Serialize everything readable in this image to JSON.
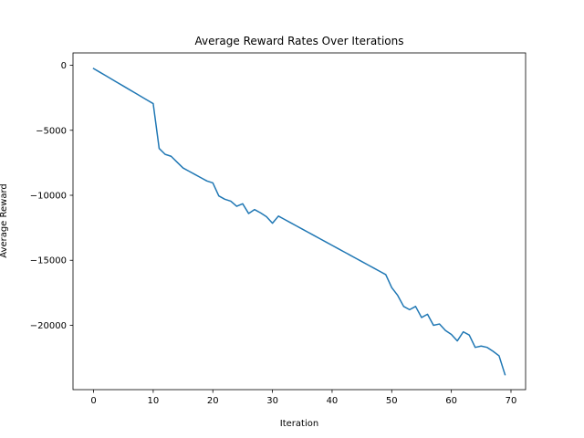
{
  "chart_data": {
    "type": "line",
    "title": "Average Reward Rates Over Iterations",
    "xlabel": "Iteration",
    "ylabel": "Average Reward",
    "xlim": [
      -3.45,
      72.45
    ],
    "ylim": [
      -24950,
      950
    ],
    "xticks": [
      0,
      10,
      20,
      30,
      40,
      50,
      60,
      70
    ],
    "yticks": [
      0,
      -5000,
      -10000,
      -15000,
      -20000
    ],
    "ytick_labels": [
      "0",
      "−5000",
      "−10000",
      "−15000",
      "−20000"
    ],
    "grid": false,
    "series": [
      {
        "color": "#1f77b4",
        "x": [
          0,
          1,
          2,
          3,
          4,
          5,
          6,
          7,
          8,
          9,
          10,
          11,
          12,
          13,
          14,
          15,
          16,
          17,
          18,
          19,
          20,
          21,
          22,
          23,
          24,
          25,
          26,
          27,
          28,
          29,
          30,
          31,
          32,
          33,
          34,
          35,
          36,
          37,
          38,
          39,
          40,
          41,
          42,
          43,
          44,
          45,
          46,
          47,
          48,
          49,
          50,
          51,
          52,
          53,
          54,
          55,
          56,
          57,
          58,
          59,
          60,
          61,
          62,
          63,
          64,
          65,
          66,
          67,
          68,
          69
        ],
        "y": [
          -250,
          -520,
          -790,
          -1060,
          -1330,
          -1600,
          -1870,
          -2140,
          -2410,
          -2680,
          -2950,
          -6400,
          -6850,
          -7000,
          -7450,
          -7900,
          -8150,
          -8400,
          -8650,
          -8900,
          -9050,
          -10050,
          -10300,
          -10450,
          -10850,
          -10650,
          -11400,
          -11100,
          -11350,
          -11650,
          -12150,
          -11600,
          -11850,
          -12100,
          -12350,
          -12600,
          -12850,
          -13100,
          -13350,
          -13600,
          -13850,
          -14100,
          -14350,
          -14600,
          -14850,
          -15100,
          -15350,
          -15600,
          -15850,
          -16100,
          -17100,
          -17700,
          -18550,
          -18800,
          -18550,
          -19400,
          -19150,
          -20000,
          -19900,
          -20400,
          -20700,
          -21200,
          -20500,
          -20750,
          -21700,
          -21600,
          -21700,
          -22000,
          -22350,
          -23800
        ]
      }
    ]
  }
}
